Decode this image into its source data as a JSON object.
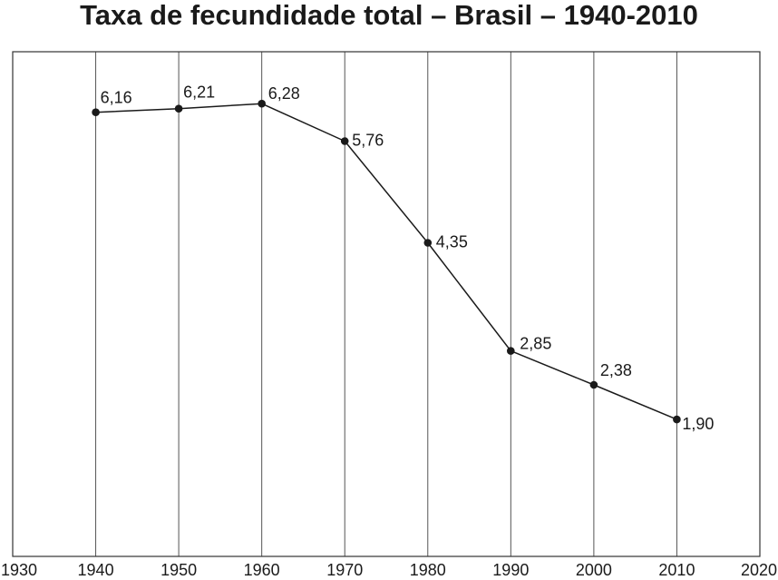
{
  "chart_data": {
    "type": "line",
    "title": "Taxa de fecundidade total – Brasil – 1940-2010",
    "xlabel": "",
    "ylabel": "",
    "x": [
      1940,
      1950,
      1960,
      1970,
      1980,
      1990,
      2000,
      2010
    ],
    "values": [
      6.16,
      6.21,
      6.28,
      5.76,
      4.35,
      2.85,
      2.38,
      1.9
    ],
    "data_labels": [
      "6,16",
      "6,21",
      "6,28",
      "5,76",
      "4,35",
      "2,85",
      "2,38",
      "1,90"
    ],
    "xticks": [
      1930,
      1940,
      1950,
      1960,
      1970,
      1980,
      1990,
      2000,
      2010,
      2020
    ],
    "xtick_labels": [
      "1930",
      "1940",
      "1950",
      "1960",
      "1970",
      "1980",
      "1990",
      "2000",
      "2010",
      "2020"
    ],
    "xlim": [
      1930,
      2020
    ],
    "ylim": [
      0,
      7
    ],
    "grid": "vertical",
    "legend": "none",
    "colors": {
      "line": "#1a1a1a",
      "grid": "#555555",
      "frame": "#333333",
      "text": "#1a1a1a"
    }
  }
}
